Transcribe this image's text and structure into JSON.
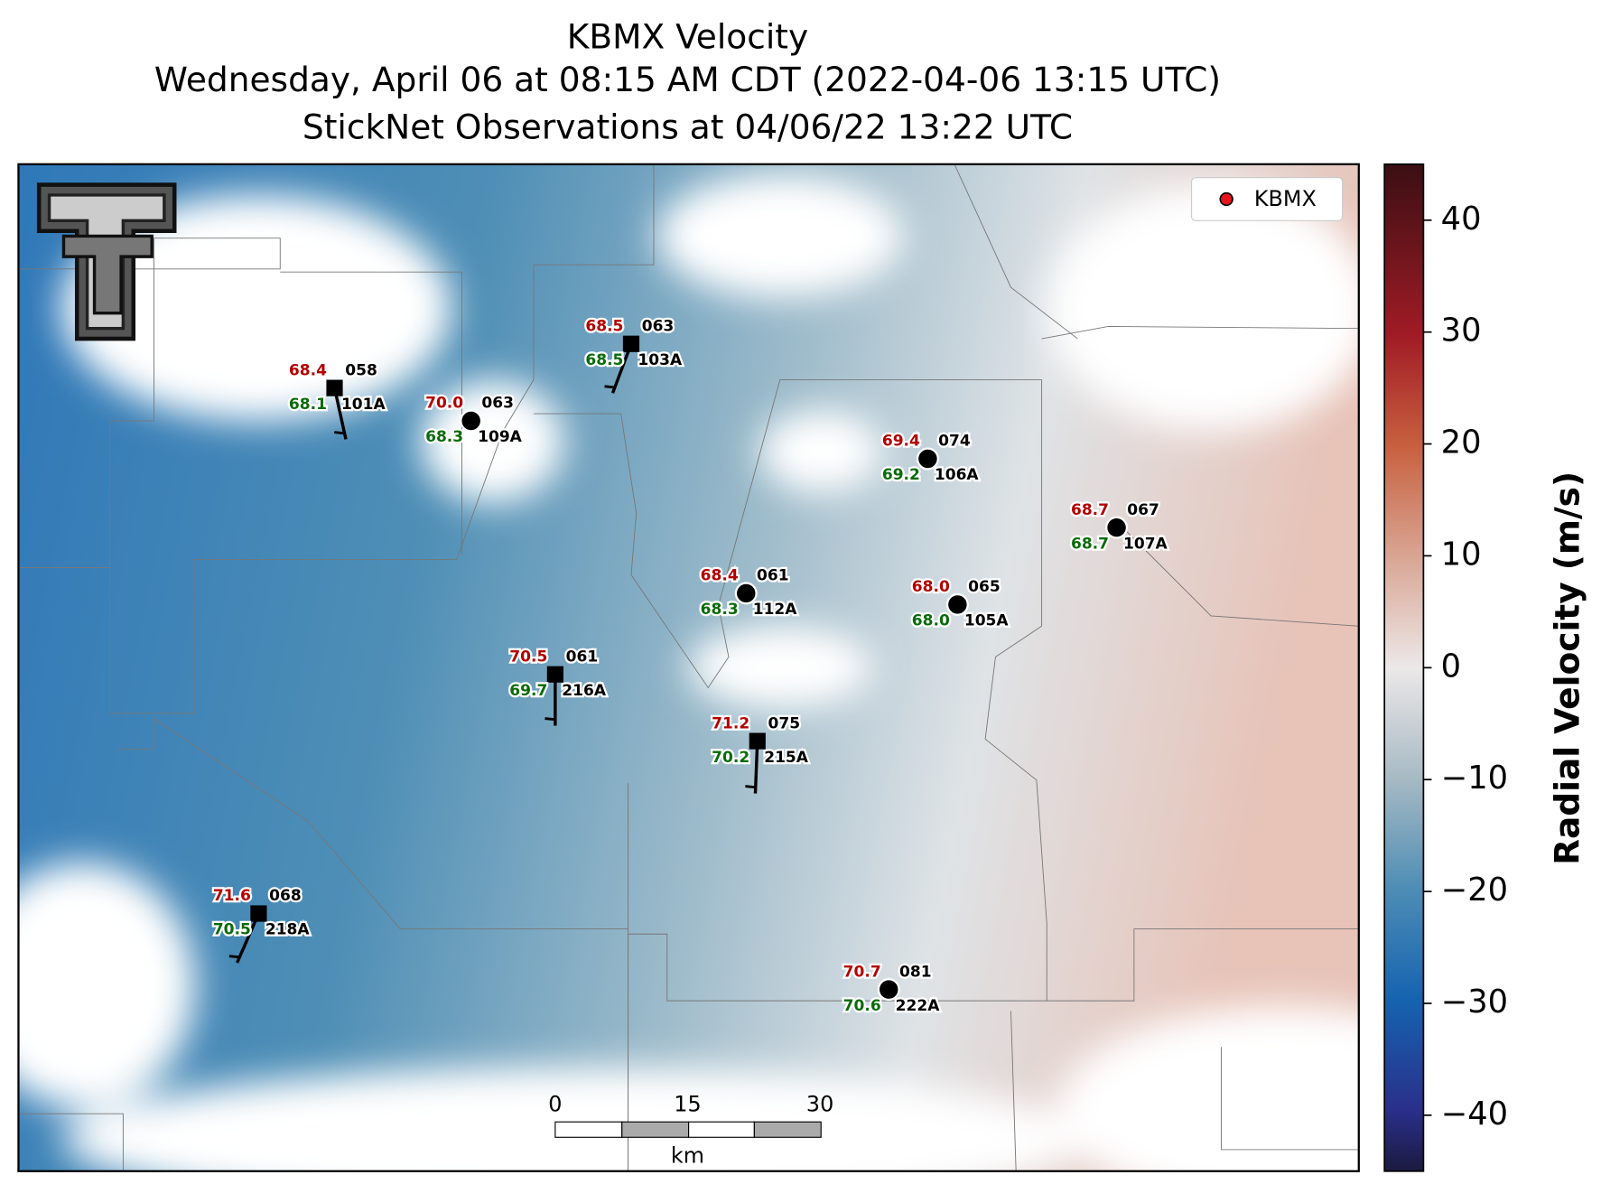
{
  "title": [
    "KBMX Velocity",
    "Wednesday, April 06 at 08:15 AM CDT (2022-04-06 13:15 UTC)",
    "StickNet Observations at 04/06/22 13:22 UTC"
  ],
  "legend": {
    "label": "KBMX",
    "color": "#e8141c"
  },
  "colorbar": {
    "label": "Radial Velocity (m/s)",
    "range": [
      -45,
      45
    ],
    "ticks": [
      40,
      30,
      20,
      10,
      0,
      {
        "value": -10,
        "label": "−10"
      },
      {
        "value": -20,
        "label": "−20"
      },
      {
        "value": -30,
        "label": "−30"
      },
      {
        "value": -40,
        "label": "−40"
      }
    ]
  },
  "stations": [
    {
      "id": "101A",
      "temp": "68.4",
      "dewpoint": "68.1",
      "code": "058"
    },
    {
      "id": "109A",
      "temp": "70.0",
      "dewpoint": "68.3",
      "code": "063"
    },
    {
      "id": "103A",
      "temp": "68.5",
      "dewpoint": "68.5",
      "code": "063"
    },
    {
      "id": "106A",
      "temp": "69.4",
      "dewpoint": "69.2",
      "code": "074"
    },
    {
      "id": "107A",
      "temp": "68.7",
      "dewpoint": "68.7",
      "code": "067"
    },
    {
      "id": "112A",
      "temp": "68.4",
      "dewpoint": "68.3",
      "code": "061"
    },
    {
      "id": "105A",
      "temp": "68.0",
      "dewpoint": "68.0",
      "code": "065"
    },
    {
      "id": "216A",
      "temp": "70.5",
      "dewpoint": "69.7",
      "code": "061"
    },
    {
      "id": "215A",
      "temp": "71.2",
      "dewpoint": "70.2",
      "code": "075"
    },
    {
      "id": "218A",
      "temp": "71.6",
      "dewpoint": "70.5",
      "code": "068"
    },
    {
      "id": "222A",
      "temp": "70.7",
      "dewpoint": "70.6",
      "code": "081"
    }
  ],
  "scale_bar": {
    "ticks": [
      "0",
      "15",
      "30"
    ],
    "unit": "km"
  }
}
